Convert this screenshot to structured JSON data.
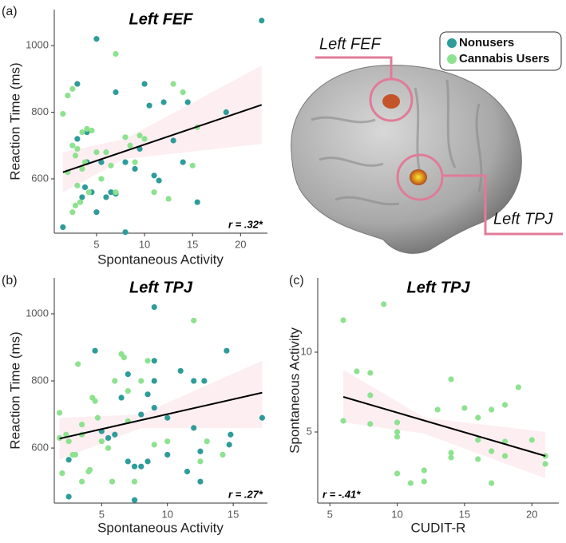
{
  "brain": {
    "labels": [
      "Left FEF",
      "Left TPJ"
    ]
  },
  "chart_data": [
    {
      "type": "scatter",
      "label": "(a)",
      "title": "Left FEF",
      "x_label": "Spontaneous Activity",
      "y_label": "Reaction Time (ms)",
      "annotation": "r = .32*",
      "xlim": [
        0.6,
        22.8
      ],
      "ylim": [
        437,
        1108
      ],
      "xticks": [
        5,
        10,
        15,
        20
      ],
      "yticks": [
        600,
        800,
        1000
      ],
      "series": [
        {
          "name": "Nonusers",
          "color": "#2e9c9a",
          "x": [
            1.5,
            3,
            3,
            3.5,
            3.8,
            4,
            4,
            4.5,
            5,
            5,
            5.5,
            6,
            6.5,
            7,
            7,
            8,
            8,
            9,
            9.5,
            10,
            10.5,
            11,
            11.5,
            12,
            13,
            14,
            14.5,
            15.5,
            18.5,
            22.2
          ],
          "values": [
            455,
            885,
            720,
            545,
            575,
            740,
            650,
            560,
            1020,
            500,
            650,
            545,
            560,
            860,
            555,
            440,
            650,
            630,
            690,
            885,
            820,
            610,
            595,
            830,
            715,
            650,
            830,
            530,
            800,
            1075
          ]
        },
        {
          "name": "Cannabis Users",
          "color": "#8de28f",
          "x": [
            1.5,
            2,
            2.5,
            2.5,
            2,
            2.8,
            3,
            2.8,
            2.5,
            3,
            3.3,
            3.5,
            3.8,
            4,
            4.2,
            4.5,
            3.5,
            5,
            5.5,
            6,
            6.5,
            7,
            7,
            8,
            8.5,
            9,
            9.5,
            10,
            11,
            12.5,
            13,
            14,
            15,
            15.5
          ],
          "values": [
            795,
            850,
            870,
            700,
            620,
            670,
            690,
            520,
            500,
            580,
            530,
            740,
            650,
            750,
            560,
            745,
            630,
            680,
            600,
            680,
            640,
            975,
            560,
            725,
            700,
            650,
            730,
            720,
            560,
            540,
            885,
            860,
            640,
            755
          ]
        }
      ],
      "fit": {
        "x": [
          1.5,
          22.2
        ],
        "y": [
          620,
          822
        ]
      },
      "band": {
        "x": [
          1.5,
          8,
          22.2
        ],
        "lower": [
          560,
          660,
          705
        ],
        "upper": [
          680,
          720,
          940
        ]
      }
    },
    {
      "type": "scatter",
      "label": "(b)",
      "title": "Left TPJ",
      "x_label": "Spontaneous Activity",
      "y_label": "Reaction Time (ms)",
      "annotation": "r = .27*",
      "xlim": [
        1.4,
        17.6
      ],
      "ylim": [
        436,
        1107
      ],
      "xticks": [
        5,
        10,
        15
      ],
      "yticks": [
        600,
        800,
        1000
      ],
      "series": [
        {
          "name": "Nonusers",
          "color": "#2e9c9a",
          "x": [
            2.5,
            2.5,
            4.5,
            5,
            5.5,
            6,
            6.5,
            7,
            7,
            7.5,
            7.5,
            8,
            8,
            8.5,
            8.5,
            9,
            9,
            9,
            9,
            10,
            10,
            11,
            11.5,
            12,
            12,
            12.5,
            12.5,
            12.8,
            14.5,
            14.7,
            14.8,
            17.2
          ],
          "values": [
            455,
            565,
            890,
            650,
            630,
            640,
            750,
            560,
            820,
            545,
            445,
            545,
            700,
            560,
            760,
            860,
            1020,
            800,
            720,
            690,
            580,
            830,
            530,
            800,
            660,
            500,
            590,
            800,
            890,
            610,
            640,
            690
          ]
        },
        {
          "name": "Cannabis Users",
          "color": "#8de28f",
          "x": [
            1.8,
            1.8,
            2,
            2.3,
            2.5,
            2.8,
            3,
            3.2,
            3.5,
            3.5,
            3.5,
            4,
            4.1,
            4.3,
            4.5,
            4.7,
            5,
            5.5,
            5.8,
            6,
            6.5,
            6.7,
            7,
            7,
            7.5,
            8,
            8.5,
            9,
            10,
            12,
            12.5,
            13,
            14.2
          ],
          "values": [
            705,
            630,
            525,
            640,
            620,
            580,
            580,
            850,
            670,
            640,
            500,
            530,
            535,
            750,
            740,
            690,
            620,
            600,
            500,
            800,
            880,
            870,
            770,
            680,
            500,
            800,
            860,
            610,
            620,
            980,
            560,
            620,
            580
          ]
        }
      ],
      "fit": {
        "x": [
          1.8,
          17.2
        ],
        "y": [
          628,
          765
        ]
      },
      "band": {
        "x": [
          1.8,
          8,
          17.2
        ],
        "lower": [
          565,
          660,
          660
        ],
        "upper": [
          690,
          700,
          860
        ]
      }
    },
    {
      "type": "scatter",
      "label": "(c)",
      "title": "Left TPJ",
      "x_label": "CUDIT-R",
      "y_label": "Spontaneous Activity",
      "annotation": "r = -.41*",
      "xlim": [
        4.1,
        22
      ],
      "ylim": [
        0.55,
        14.65
      ],
      "xticks": [
        5,
        10,
        15,
        20
      ],
      "yticks": [
        5,
        10
      ],
      "series": [
        {
          "name": "Cannabis Users",
          "color": "#8de28f",
          "x": [
            6,
            6,
            7,
            8,
            8,
            8,
            9,
            10,
            10,
            10,
            10,
            11,
            12,
            12,
            13,
            14,
            14,
            14,
            15,
            16,
            16,
            16,
            17,
            17,
            17,
            18,
            18,
            18,
            19,
            20,
            21,
            21
          ],
          "values": [
            12,
            5.7,
            8.8,
            8.7,
            7.3,
            5.5,
            13,
            5.6,
            5.0,
            4.7,
            2.4,
            1.8,
            2.6,
            1.9,
            6.4,
            8.3,
            3.7,
            3.4,
            6.5,
            5.9,
            4.5,
            3.3,
            6.4,
            3.8,
            1.8,
            6.7,
            4.4,
            3.5,
            7.8,
            4.5,
            3.5,
            3.0
          ]
        }
      ],
      "fit": {
        "x": [
          6,
          21
        ],
        "y": [
          7.2,
          3.5
        ]
      },
      "band": {
        "x": [
          6,
          12,
          21
        ],
        "lower": [
          5.6,
          4.9,
          2.1
        ],
        "upper": [
          8.9,
          5.9,
          5.0
        ]
      }
    }
  ]
}
